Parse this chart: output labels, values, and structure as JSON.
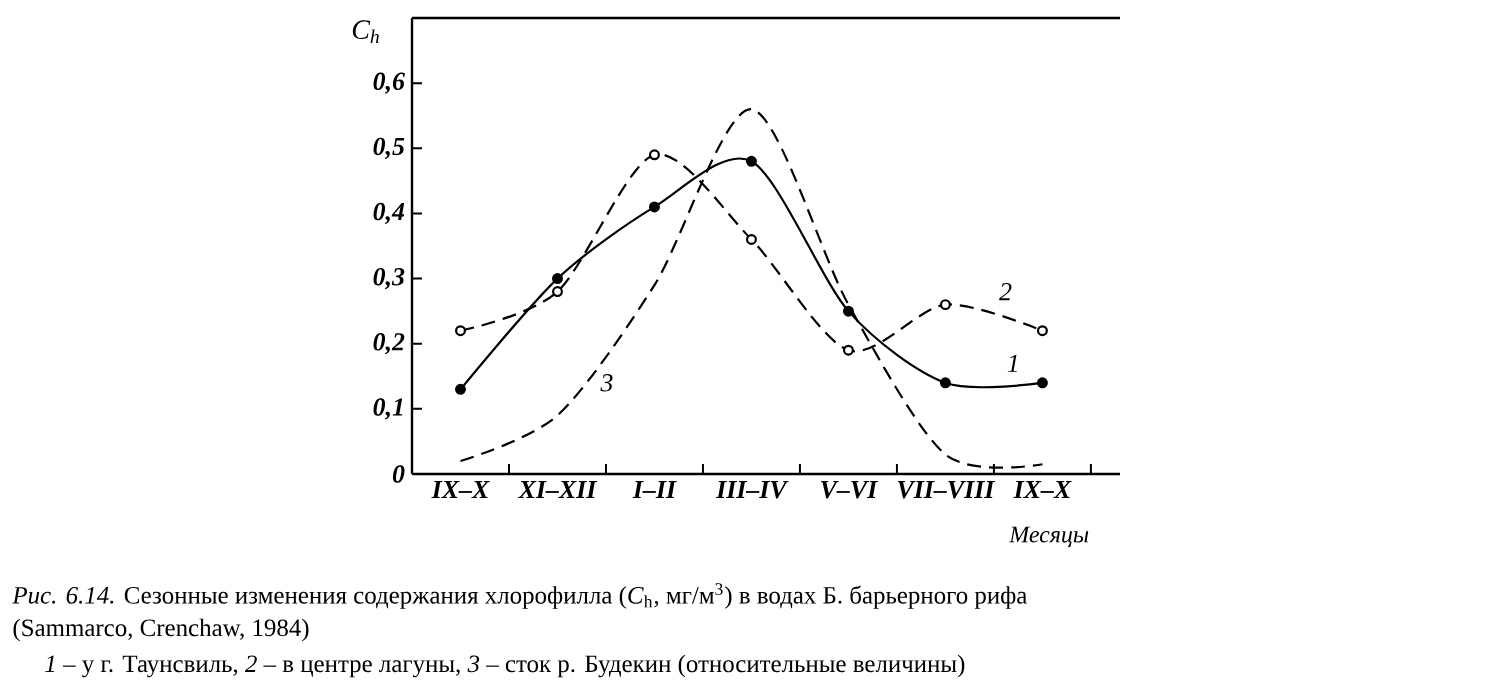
{
  "chart_data": {
    "type": "line",
    "ylabel": "C$_{h}$",
    "xlabel": "Месяцы",
    "categories": [
      "IX–X",
      "XI–XII",
      "I–II",
      "III–IV",
      "V–VI",
      "VII–VIII",
      "IX–X"
    ],
    "ylim": [
      0,
      0.7
    ],
    "yticks": [
      {
        "value": 0,
        "label": "0"
      },
      {
        "value": 0.1,
        "label": "0,1"
      },
      {
        "value": 0.2,
        "label": "0,2"
      },
      {
        "value": 0.3,
        "label": "0,3"
      },
      {
        "value": 0.4,
        "label": "0,4"
      },
      {
        "value": 0.5,
        "label": "0,5"
      },
      {
        "value": 0.6,
        "label": "0,6"
      }
    ],
    "series": [
      {
        "name": "1",
        "color": "#000000",
        "line_style": "solid",
        "marker": "circle",
        "values": [
          0.13,
          0.3,
          0.41,
          0.48,
          0.25,
          0.14,
          0.14
        ]
      },
      {
        "name": "2",
        "color": "#000000",
        "line_style": "dashed",
        "marker": "circle",
        "values": [
          0.22,
          0.28,
          0.49,
          0.36,
          0.19,
          0.26,
          0.22
        ]
      },
      {
        "name": "3",
        "color": "#000000",
        "line_style": "dashed",
        "marker": "none",
        "values": [
          0.02,
          0.09,
          0.29,
          0.56,
          0.26,
          0.03,
          0.015
        ]
      }
    ],
    "annotations": [
      "*Рис. 6.14.* Сезонные изменения содержания хлорофилла (*C*$_{h}$, мг/м$^{3}$) в водах Б. барьерного рифа",
      "(Sammarco, Crenchaw, 1984)",
      "*1* – у г. Таунсвиль, *2* – в центре лагуны, *3* – сток р. Будекин   (относительные величины)"
    ]
  }
}
